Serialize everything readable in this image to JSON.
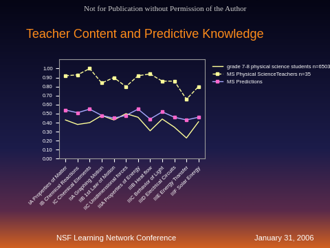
{
  "header": "Not for Publication without Permission of the Author",
  "footer": {
    "left": "NSF Learning Network Conference",
    "right": "January 31, 2006"
  },
  "chart_data": {
    "type": "line",
    "title": "Teacher Content and Predictive Knowledge",
    "categories": [
      "IA Properties of Matter",
      "IB Chemical Reactions",
      "IC Chemical Elements",
      "IIA Graphing Motion",
      "IIB 1st Law of Motion",
      "IIC Unidimensional forces",
      "IIIA Properties of Energy",
      "IIIB Heat flow",
      "IIIC Behavior of Light",
      "IIID Electrical Circuits",
      "IIIE Energy Transfer",
      "IIIF Solar Energy"
    ],
    "series": [
      {
        "name": "grade 7-8 physical science students n=6503",
        "color": "#ffff99",
        "line_style": "solid",
        "values": [
          0.43,
          0.38,
          0.4,
          0.48,
          0.43,
          0.5,
          0.46,
          0.31,
          0.44,
          0.35,
          0.23,
          0.41
        ]
      },
      {
        "name": "MS Physical ScienceTeachers n=35",
        "color": "#ffff99",
        "line_style": "dashed",
        "marker": "s",
        "values": [
          0.92,
          0.93,
          1.0,
          0.84,
          0.9,
          0.8,
          0.92,
          0.94,
          0.86,
          0.86,
          0.66,
          0.8
        ]
      },
      {
        "name": "MS Predictions",
        "color": "#aaaaff",
        "line_style": "solid",
        "marker": "s",
        "values": [
          0.54,
          0.51,
          0.55,
          0.48,
          0.45,
          0.48,
          0.55,
          0.44,
          0.52,
          0.46,
          0.43,
          0.46
        ]
      }
    ],
    "ylim": [
      0,
      1.1
    ],
    "yticks": [
      {
        "value": 0,
        "label": "0.00"
      },
      {
        "value": 0.1,
        "label": "0.10"
      },
      {
        "value": 0.2,
        "label": "0.20"
      },
      {
        "value": 0.3,
        "label": "0.30"
      },
      {
        "value": 0.4,
        "label": "0.40"
      },
      {
        "value": 0.5,
        "label": "0.50"
      },
      {
        "value": 0.6,
        "label": "0.60"
      },
      {
        "value": 0.7,
        "label": "0.70"
      },
      {
        "value": 0.8,
        "label": "0.80"
      },
      {
        "value": 0.9,
        "label": "0.90"
      },
      {
        "value": 1.0,
        "label": "1.00"
      }
    ],
    "grid": false,
    "legend": "upper left"
  }
}
